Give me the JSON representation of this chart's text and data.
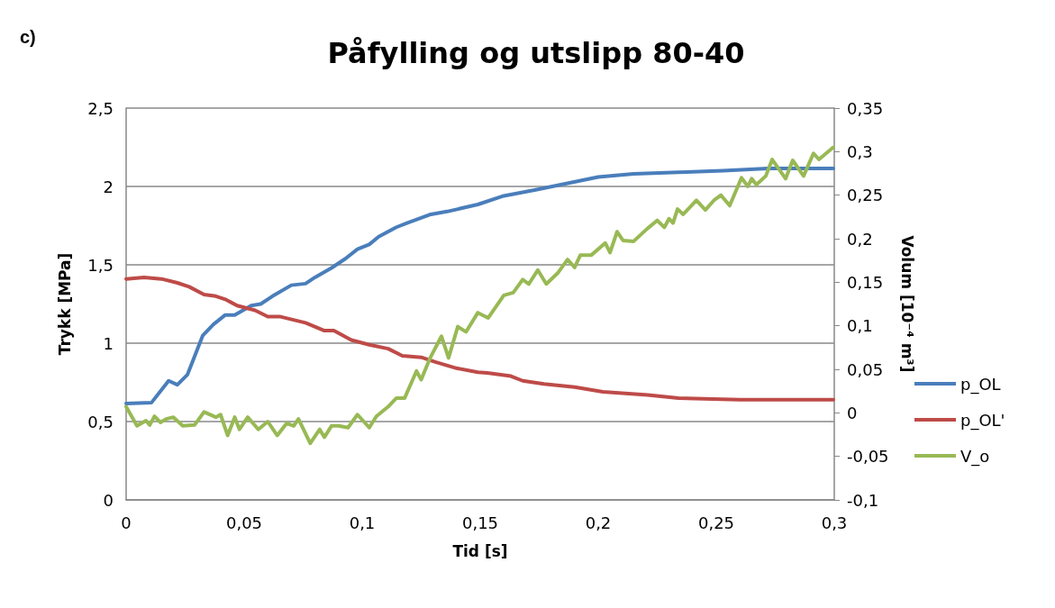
{
  "chart_data": {
    "type": "line",
    "title": "Påfylling og utslipp 80-40",
    "xlabel": "Tid [s]",
    "ylabel": "Trykk [MPa]",
    "y2label": "Volum [10⁻⁴ m³]",
    "annotations": [
      "c)"
    ],
    "xlim": [
      0,
      0.3
    ],
    "xticks": [
      0,
      {
        "value": 0.05,
        "label": "0,05"
      },
      {
        "value": 0.1,
        "label": "0,1"
      },
      {
        "value": 0.15,
        "label": "0,15"
      },
      {
        "value": 0.2,
        "label": "0,2"
      },
      {
        "value": 0.25,
        "label": "0,25"
      },
      {
        "value": 0.3,
        "label": "0,3"
      }
    ],
    "ylim": [
      0,
      2.5
    ],
    "yticks": [
      0,
      {
        "value": 0.5,
        "label": "0,5"
      },
      1,
      {
        "value": 1.5,
        "label": "1,5"
      },
      2,
      {
        "value": 2.5,
        "label": "2,5"
      }
    ],
    "y2lim": [
      -0.1,
      0.35
    ],
    "y2ticks": [
      {
        "value": -0.1,
        "label": "-0,1"
      },
      {
        "value": -0.05,
        "label": "-0,05"
      },
      0,
      {
        "value": 0.05,
        "label": "0,05"
      },
      {
        "value": 0.1,
        "label": "0,1"
      },
      {
        "value": 0.15,
        "label": "0,15"
      },
      {
        "value": 0.2,
        "label": "0,2"
      },
      {
        "value": 0.25,
        "label": "0,25"
      },
      {
        "value": 0.3,
        "label": "0,3"
      },
      {
        "value": 0.35,
        "label": "0,35"
      }
    ],
    "grid": "y",
    "legend": "right",
    "marker": "none",
    "line_style": "solid",
    "series": [
      {
        "name": "p_OL",
        "color": "#4a7ebb",
        "x": [
          0,
          0.0107,
          0.018,
          0.0217,
          0.026,
          0.0325,
          0.037,
          0.042,
          0.046,
          0.053,
          0.057,
          0.062,
          0.07,
          0.076,
          0.08,
          0.087,
          0.093,
          0.098,
          0.103,
          0.107,
          0.1145,
          0.1195,
          0.1286,
          0.136,
          0.149,
          0.16,
          0.174,
          0.187,
          0.2,
          0.215,
          0.234,
          0.253,
          0.272,
          0.2996
        ],
        "values": [
          0.615,
          0.62,
          0.76,
          0.735,
          0.8,
          1.05,
          1.12,
          1.18,
          1.18,
          1.24,
          1.25,
          1.3,
          1.37,
          1.38,
          1.42,
          1.48,
          1.54,
          1.6,
          1.63,
          1.68,
          1.74,
          1.77,
          1.82,
          1.84,
          1.885,
          1.94,
          1.98,
          2.02,
          2.06,
          2.08,
          2.09,
          2.1,
          2.115,
          2.115
        ]
      },
      {
        "name": "p_OL'",
        "color": "#be4b48",
        "x": [
          0,
          0.0076,
          0.015,
          0.0217,
          0.0267,
          0.033,
          0.038,
          0.042,
          0.047,
          0.0546,
          0.06,
          0.065,
          0.076,
          0.084,
          0.088,
          0.0954,
          0.103,
          0.111,
          0.117,
          0.125,
          0.131,
          0.14,
          0.149,
          0.153,
          0.163,
          0.168,
          0.177,
          0.19,
          0.202,
          0.221,
          0.234,
          0.26,
          0.285,
          0.2996
        ],
        "values": [
          1.41,
          1.42,
          1.41,
          1.385,
          1.36,
          1.31,
          1.3,
          1.28,
          1.24,
          1.21,
          1.17,
          1.17,
          1.13,
          1.08,
          1.08,
          1.02,
          0.99,
          0.965,
          0.92,
          0.91,
          0.88,
          0.84,
          0.815,
          0.81,
          0.79,
          0.76,
          0.74,
          0.72,
          0.69,
          0.67,
          0.65,
          0.64,
          0.64,
          0.64
        ]
      },
      {
        "name": "V_o",
        "color": "#98b954",
        "axis": "y2",
        "x": [
          0,
          0.0046,
          0.0084,
          0.01,
          0.012,
          0.0145,
          0.017,
          0.02,
          0.024,
          0.029,
          0.033,
          0.038,
          0.04,
          0.043,
          0.046,
          0.048,
          0.0515,
          0.056,
          0.06,
          0.064,
          0.068,
          0.071,
          0.073,
          0.078,
          0.082,
          0.084,
          0.087,
          0.09,
          0.094,
          0.098,
          0.103,
          0.106,
          0.111,
          0.1145,
          0.118,
          0.123,
          0.125,
          0.1286,
          0.1336,
          0.1366,
          0.1405,
          0.144,
          0.149,
          0.1534,
          0.16,
          0.164,
          0.168,
          0.1706,
          0.1744,
          0.178,
          0.183,
          0.187,
          0.19,
          0.1924,
          0.197,
          0.203,
          0.205,
          0.208,
          0.2105,
          0.215,
          0.221,
          0.225,
          0.228,
          0.23,
          0.2317,
          0.2336,
          0.236,
          0.2416,
          0.2454,
          0.249,
          0.252,
          0.2557,
          0.2607,
          0.2634,
          0.265,
          0.267,
          0.271,
          0.2737,
          0.2794,
          0.2824,
          0.287,
          0.2912,
          0.2935,
          0.2996
        ],
        "values": [
          0.007,
          -0.015,
          -0.009,
          -0.014,
          -0.004,
          -0.011,
          -0.007,
          -0.005,
          -0.015,
          -0.014,
          0.001,
          -0.005,
          -0.002,
          -0.026,
          -0.005,
          -0.019,
          -0.005,
          -0.019,
          -0.01,
          -0.026,
          -0.012,
          -0.015,
          -0.007,
          -0.035,
          -0.019,
          -0.028,
          -0.015,
          -0.015,
          -0.017,
          -0.002,
          -0.017,
          -0.004,
          0.007,
          0.017,
          0.017,
          0.048,
          0.038,
          0.062,
          0.088,
          0.063,
          0.099,
          0.093,
          0.115,
          0.109,
          0.135,
          0.138,
          0.153,
          0.148,
          0.164,
          0.148,
          0.161,
          0.176,
          0.167,
          0.181,
          0.181,
          0.195,
          0.184,
          0.208,
          0.198,
          0.197,
          0.212,
          0.221,
          0.213,
          0.223,
          0.218,
          0.234,
          0.228,
          0.244,
          0.233,
          0.244,
          0.25,
          0.238,
          0.27,
          0.26,
          0.269,
          0.262,
          0.272,
          0.291,
          0.269,
          0.29,
          0.272,
          0.298,
          0.291,
          0.305
        ]
      }
    ]
  }
}
